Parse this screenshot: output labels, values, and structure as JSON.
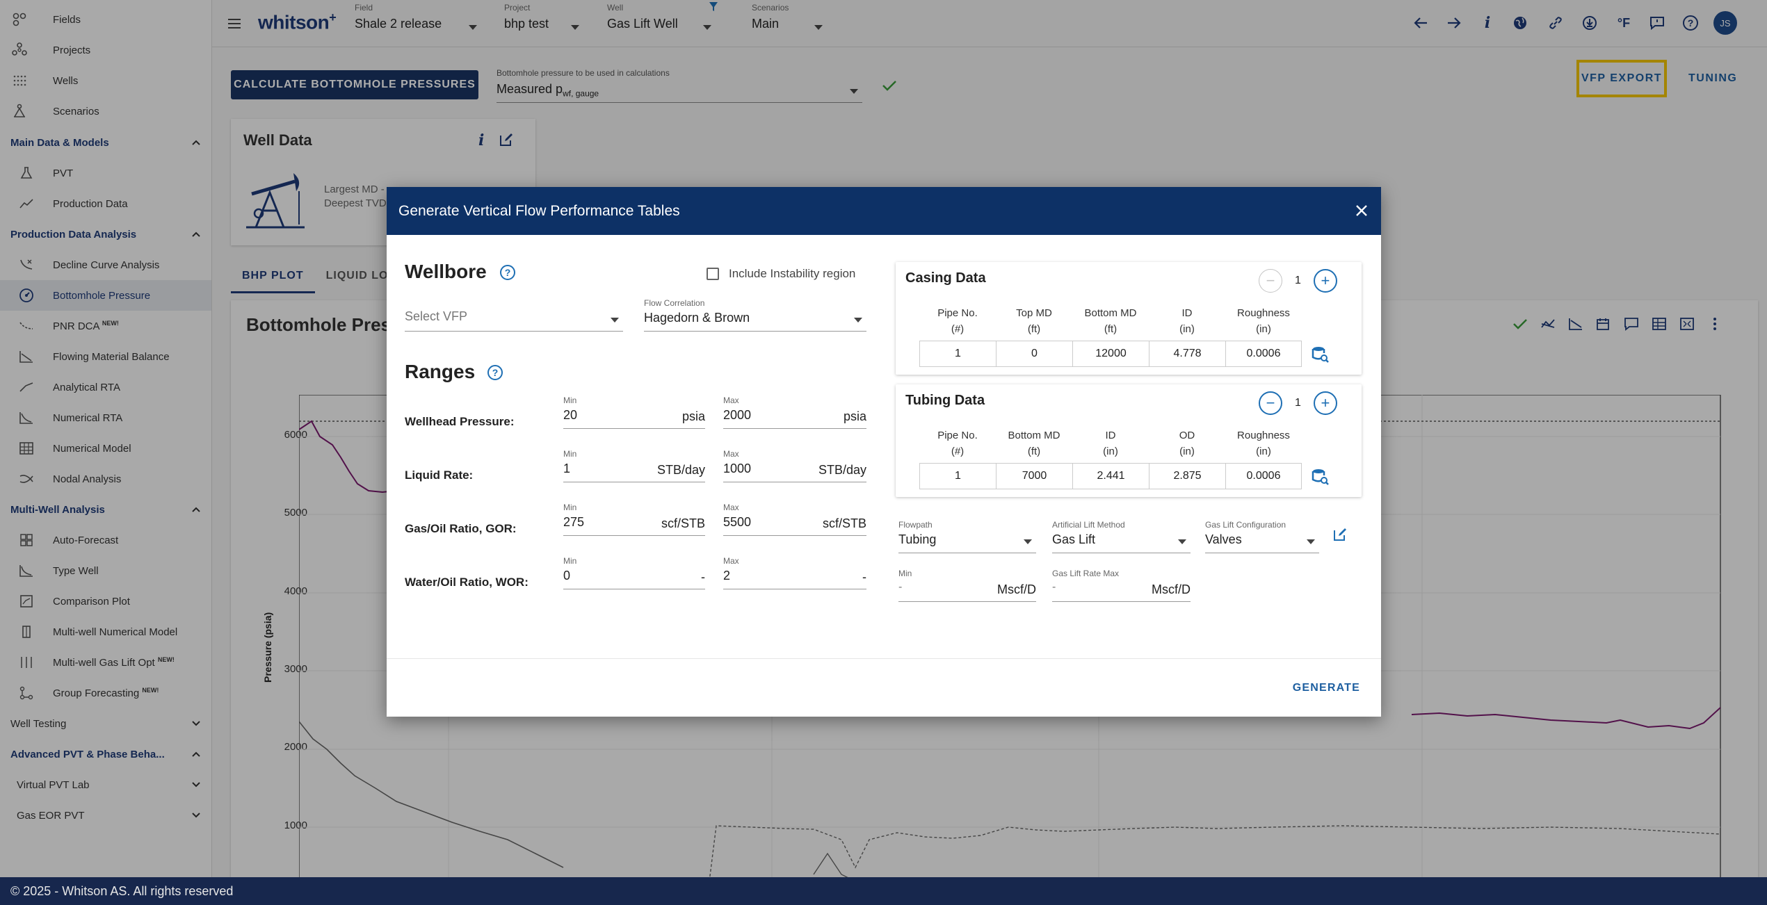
{
  "sidebar": {
    "top_items": [
      {
        "label": "Fields",
        "icon": "fields-icon"
      },
      {
        "label": "Projects",
        "icon": "projects-icon"
      },
      {
        "label": "Wells",
        "icon": "wells-icon"
      },
      {
        "label": "Scenarios",
        "icon": "scenarios-icon"
      }
    ],
    "sections": {
      "main_data": {
        "label": "Main Data & Models",
        "items": [
          {
            "label": "PVT"
          },
          {
            "label": "Production Data"
          }
        ]
      },
      "production_analysis": {
        "label": "Production Data Analysis",
        "items": [
          {
            "label": "Decline Curve Analysis"
          },
          {
            "label": "Bottomhole Pressure"
          },
          {
            "label": "PNR DCA",
            "badge": "NEW!"
          },
          {
            "label": "Flowing Material Balance"
          },
          {
            "label": "Analytical RTA"
          },
          {
            "label": "Numerical RTA"
          },
          {
            "label": "Numerical Model"
          },
          {
            "label": "Nodal Analysis"
          }
        ]
      },
      "multi_well": {
        "label": "Multi-Well Analysis",
        "items": [
          {
            "label": "Auto-Forecast"
          },
          {
            "label": "Type Well"
          },
          {
            "label": "Comparison Plot"
          },
          {
            "label": "Multi-well Numerical Model"
          },
          {
            "label": "Multi-well Gas Lift Opt",
            "badge": "NEW!"
          },
          {
            "label": "Group Forecasting",
            "badge": "NEW!"
          }
        ]
      },
      "well_testing": {
        "label": "Well Testing"
      },
      "advanced_pvt": {
        "label": "Advanced PVT & Phase Beha...",
        "items": [
          {
            "label": "Virtual PVT Lab"
          },
          {
            "label": "Gas EOR PVT"
          }
        ]
      }
    },
    "active_item": "Bottomhole Pressure"
  },
  "topbar": {
    "logo": "whitson",
    "logo_sup": "+",
    "field": {
      "caption": "Field",
      "value": "Shale 2 release"
    },
    "project": {
      "caption": "Project",
      "value": "bhp test"
    },
    "well": {
      "caption": "Well",
      "value": "Gas Lift Well"
    },
    "scenarios": {
      "caption": "Scenarios",
      "value": "Main"
    },
    "unit_label": "°F",
    "avatar": "JS"
  },
  "main": {
    "calc_button": "CALCULATE BOTTOMHOLE PRESSURES",
    "bhp_select": {
      "caption": "Bottomhole pressure to be used in calculations",
      "value": "Measured p",
      "value_sub": "wf, gauge"
    },
    "vfp_export": "VFP EXPORT",
    "tuning": "TUNING",
    "well_data": {
      "title": "Well Data",
      "line1": "Largest MD -",
      "line2": "Deepest TVD"
    },
    "tabs": [
      "BHP PLOT",
      "LIQUID LOA"
    ],
    "plot_title": "Bottomhole Press",
    "y_axis_label": "Pressure (psia)",
    "y_ticks": [
      "6000",
      "5000",
      "4000",
      "3000",
      "2000",
      "1000"
    ]
  },
  "modal": {
    "title": "Generate Vertical Flow Performance Tables",
    "wellbore": {
      "heading": "Wellbore",
      "include_instability": "Include Instability region",
      "select_vfp_placeholder": "Select VFP",
      "flow_correlation": {
        "caption": "Flow Correlation",
        "value": "Hagedorn & Brown"
      }
    },
    "ranges": {
      "heading": "Ranges",
      "min_caption": "Min",
      "max_caption": "Max",
      "rows": [
        {
          "label": "Wellhead Pressure:",
          "min": "20",
          "max": "2000",
          "unit": "psia"
        },
        {
          "label": "Liquid Rate:",
          "min": "1",
          "max": "1000",
          "unit": "STB/day"
        },
        {
          "label": "Gas/Oil Ratio, GOR:",
          "min": "275",
          "max": "5500",
          "unit": "scf/STB"
        },
        {
          "label": "Water/Oil Ratio, WOR:",
          "min": "0",
          "max": "2",
          "unit": "-"
        }
      ]
    },
    "casing": {
      "title": "Casing Data",
      "count": "1",
      "columns": [
        [
          "Pipe No.",
          "(#)"
        ],
        [
          "Top MD",
          "(ft)"
        ],
        [
          "Bottom MD",
          "(ft)"
        ],
        [
          "ID",
          "(in)"
        ],
        [
          "Roughness",
          "(in)"
        ]
      ],
      "row": [
        "1",
        "0",
        "12000",
        "4.778",
        "0.0006"
      ]
    },
    "tubing": {
      "title": "Tubing Data",
      "count": "1",
      "columns": [
        [
          "Pipe No.",
          "(#)"
        ],
        [
          "Bottom MD",
          "(ft)"
        ],
        [
          "ID",
          "(in)"
        ],
        [
          "OD",
          "(in)"
        ],
        [
          "Roughness",
          "(in)"
        ]
      ],
      "row": [
        "1",
        "7000",
        "2.441",
        "2.875",
        "0.0006"
      ]
    },
    "flowpath": {
      "caption": "Flowpath",
      "value": "Tubing"
    },
    "artificial_lift": {
      "caption": "Artificial Lift Method",
      "value": "Gas Lift"
    },
    "gas_lift_config": {
      "caption": "Gas Lift Configuration",
      "value": "Valves"
    },
    "gas_lift_min": {
      "caption": "Min",
      "placeholder": "-",
      "unit": "Mscf/D"
    },
    "gas_lift_max": {
      "caption": "Gas Lift Rate Max",
      "placeholder": "-",
      "unit": "Mscf/D"
    },
    "generate": "GENERATE"
  },
  "footer": "© 2025 - Whitson AS. All rights reserved",
  "colors": {
    "primary": "#0d3166",
    "accent": "#1e6fb4",
    "highlight": "#f2c400",
    "footer": "#17274d"
  }
}
